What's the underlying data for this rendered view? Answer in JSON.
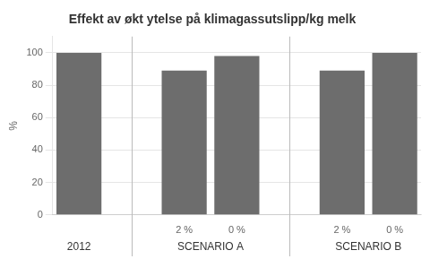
{
  "chart_data": {
    "type": "bar",
    "title": "Effekt av økt ytelse på klimagassutslipp/kg melk",
    "ylabel": "%",
    "categories": [
      null,
      "2 %",
      "0 %",
      "2 %",
      "0 %"
    ],
    "category_groups": [
      "2012",
      "SCENARIO A",
      "SCENARIO A",
      "SCENARIO B",
      "SCENARIO B"
    ],
    "values": [
      100,
      89,
      98,
      89,
      100
    ],
    "color": "#6d6d6d",
    "ylim": [
      0,
      110
    ],
    "yticks": [
      0,
      20,
      40,
      60,
      80,
      100
    ],
    "grid": true
  }
}
